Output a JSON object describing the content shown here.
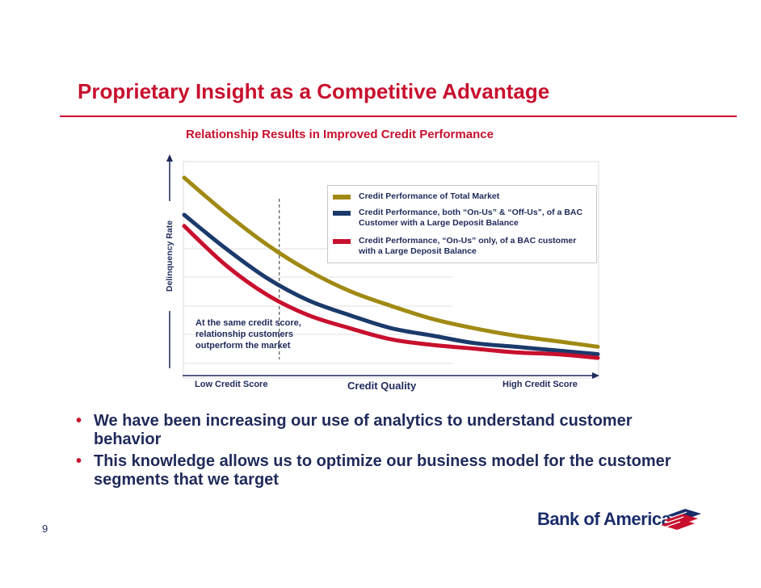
{
  "slide": {
    "title": "Proprietary Insight as a Competitive Advantage",
    "page_number": "9"
  },
  "chart_data": {
    "type": "line",
    "title": "Relationship Results in Improved Credit Performance",
    "ylabel": "Delinquency Rate",
    "xlabel": "Credit Quality",
    "x_tick_left": "Low Credit Score",
    "x_tick_right": "High Credit Score",
    "x": [
      0,
      1,
      2,
      3,
      4,
      5,
      6,
      7,
      8,
      9,
      10
    ],
    "xlim": [
      0,
      10
    ],
    "ylim": [
      0,
      100
    ],
    "grid": true,
    "legend_position": "top-right",
    "series": [
      {
        "name": "Credit Performance of Total Market",
        "color": "#a08a14",
        "values": [
          100,
          81,
          64,
          50,
          39,
          31,
          24,
          19,
          15,
          12,
          9
        ]
      },
      {
        "name": "Credit Performance, both “On-Us” & “Off-Us”, of a BAC Customer with a Large Deposit Balance",
        "color": "#1b3a6b",
        "values": [
          80,
          62,
          46,
          34,
          26,
          19,
          15,
          11,
          9,
          7,
          5
        ]
      },
      {
        "name": "Credit Performance, “On-Us” only, of a BAC customer with a Large Deposit Balance",
        "color": "#c8102e",
        "values": [
          74,
          53,
          37,
          26,
          19,
          13,
          10,
          8,
          6,
          5,
          3
        ]
      }
    ],
    "annotation": "At the same credit score, relationship customers outperform the market",
    "reference_line_x": 2.3
  },
  "bullets": [
    "We have been increasing our use of analytics to understand customer behavior",
    "This knowledge allows us to optimize our business model for the customer segments that we target"
  ],
  "bullet_marker": "•",
  "logo": {
    "text": "Bank of America"
  }
}
